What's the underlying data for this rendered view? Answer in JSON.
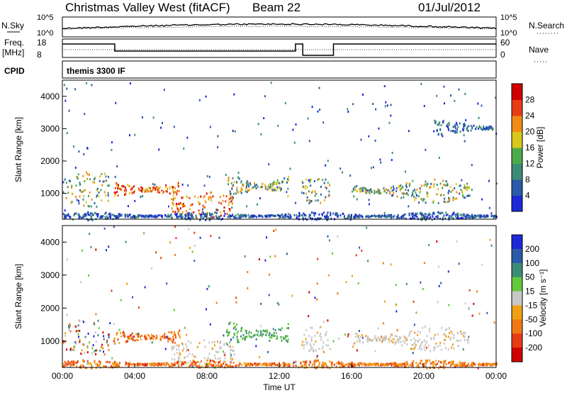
{
  "header": {
    "title": "Christmas Valley West (fitACF)",
    "beam": "Beam 22",
    "date": "01/Jul/2012"
  },
  "chart_data": [
    {
      "type": "line",
      "panel": "noise",
      "left_label": "N.Sky",
      "right_label": "N.Search",
      "ticks_left": [
        "10^5",
        "10^0"
      ],
      "ticks_right": [
        "10^5",
        "10^0"
      ]
    },
    {
      "type": "line",
      "panel": "frequency",
      "left_label": "Freq. [MHz]",
      "right_label": "Nave",
      "ticks_left": [
        "18",
        "8"
      ],
      "ticks_right": [
        "60",
        "0"
      ]
    },
    {
      "type": "table",
      "panel": "cpid",
      "left_label": "CPID",
      "value": "themis 3300 IF"
    },
    {
      "type": "heatmap",
      "panel": "power",
      "ylabel": "Slant Range [km]",
      "yticks": [
        "1000",
        "2000",
        "3000",
        "4000"
      ],
      "ylim": [
        200,
        4500
      ],
      "colorbar": {
        "label": "Power [dB]",
        "ticks": [
          "4",
          "8",
          "12",
          "16",
          "20",
          "24",
          "28"
        ],
        "colors": [
          "#1e28d8",
          "#2a5aa8",
          "#3c8c78",
          "#4caa4c",
          "#d8c81e",
          "#f08c14",
          "#e83c14",
          "#d00000"
        ]
      },
      "bands": [
        {
          "x": [
            0.0,
            2.6
          ],
          "range": [
            600,
            1700
          ],
          "level": "mid"
        },
        {
          "x": [
            2.8,
            6.5
          ],
          "range": [
            800,
            1500
          ],
          "level": "high"
        },
        {
          "x": [
            6.0,
            9.5
          ],
          "range": [
            250,
            1100
          ],
          "level": "high"
        },
        {
          "x": [
            9.0,
            12.5
          ],
          "range": [
            700,
            1800
          ],
          "level": "mid"
        },
        {
          "x": [
            13.2,
            14.8
          ],
          "range": [
            700,
            1500
          ],
          "level": "mid"
        },
        {
          "x": [
            16.0,
            22.5
          ],
          "range": [
            700,
            1500
          ],
          "level": "mid"
        },
        {
          "x": [
            20.5,
            23.8
          ],
          "range": [
            2800,
            3300
          ],
          "level": "low"
        },
        {
          "x": [
            0.0,
            24.0
          ],
          "range": [
            200,
            450
          ],
          "level": "low"
        }
      ]
    },
    {
      "type": "heatmap",
      "panel": "velocity",
      "xlabel": "Time UT",
      "xticks": [
        "00:00",
        "04:00",
        "08:00",
        "12:00",
        "16:00",
        "20:00",
        "00:00"
      ],
      "xlim": [
        0,
        24
      ],
      "ylabel": "Slant Range [km]",
      "yticks": [
        "1000",
        "2000",
        "3000",
        "4000"
      ],
      "ylim": [
        200,
        4500
      ],
      "colorbar": {
        "label": "Velocity [m s⁻¹]",
        "ticks": [
          "200",
          "100",
          "50",
          "15",
          "-15",
          "-50",
          "-100",
          "-200"
        ],
        "colors": [
          "#1e28d8",
          "#2a5aa8",
          "#3c8c78",
          "#64c83c",
          "#c8c8c8",
          "#f0a014",
          "#f07814",
          "#e83c14",
          "#d00000"
        ]
      },
      "bands": [
        {
          "x": [
            0.0,
            2.6
          ],
          "range": [
            600,
            1700
          ],
          "velocity": "mixed"
        },
        {
          "x": [
            2.8,
            6.5
          ],
          "range": [
            800,
            1500
          ],
          "velocity": "negative"
        },
        {
          "x": [
            6.0,
            9.5
          ],
          "range": [
            250,
            1100
          ],
          "velocity": "ground"
        },
        {
          "x": [
            9.0,
            12.5
          ],
          "range": [
            700,
            1800
          ],
          "velocity": "positive"
        },
        {
          "x": [
            13.2,
            14.8
          ],
          "range": [
            700,
            1500
          ],
          "velocity": "ground"
        },
        {
          "x": [
            16.0,
            22.5
          ],
          "range": [
            700,
            1500
          ],
          "velocity": "ground"
        },
        {
          "x": [
            0.0,
            24.0
          ],
          "range": [
            200,
            450
          ],
          "velocity": "negative"
        }
      ]
    }
  ]
}
